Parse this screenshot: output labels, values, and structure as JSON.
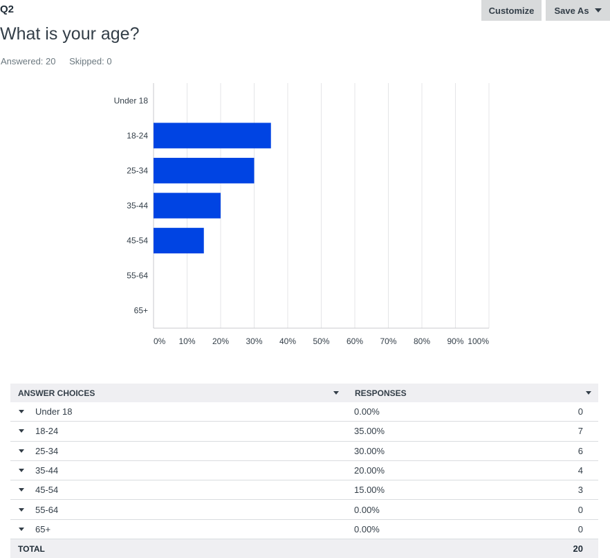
{
  "question": {
    "number": "Q2",
    "title": "What is your age?",
    "answered": "Answered: 20",
    "skipped": "Skipped: 0"
  },
  "toolbar": {
    "customize_label": "Customize",
    "save_as_label": "Save As"
  },
  "chart_data": {
    "type": "bar",
    "orientation": "horizontal",
    "categories": [
      "Under 18",
      "18-24",
      "25-34",
      "35-44",
      "45-54",
      "55-64",
      "65+"
    ],
    "values": [
      0,
      35,
      30,
      20,
      15,
      0,
      0
    ],
    "xlim": [
      0,
      100
    ],
    "xticks": [
      "0%",
      "10%",
      "20%",
      "30%",
      "40%",
      "50%",
      "60%",
      "70%",
      "80%",
      "90%",
      "100%"
    ],
    "grid": true,
    "bar_color": "#0044e3"
  },
  "table": {
    "header_answer": "ANSWER CHOICES",
    "header_responses": "RESPONSES",
    "rows": [
      {
        "choice": "Under 18",
        "percent": "0.00%",
        "count": "0"
      },
      {
        "choice": "18-24",
        "percent": "35.00%",
        "count": "7"
      },
      {
        "choice": "25-34",
        "percent": "30.00%",
        "count": "6"
      },
      {
        "choice": "35-44",
        "percent": "20.00%",
        "count": "4"
      },
      {
        "choice": "45-54",
        "percent": "15.00%",
        "count": "3"
      },
      {
        "choice": "55-64",
        "percent": "0.00%",
        "count": "0"
      },
      {
        "choice": "65+",
        "percent": "0.00%",
        "count": "0"
      }
    ],
    "total_label": "TOTAL",
    "total_value": "20"
  }
}
